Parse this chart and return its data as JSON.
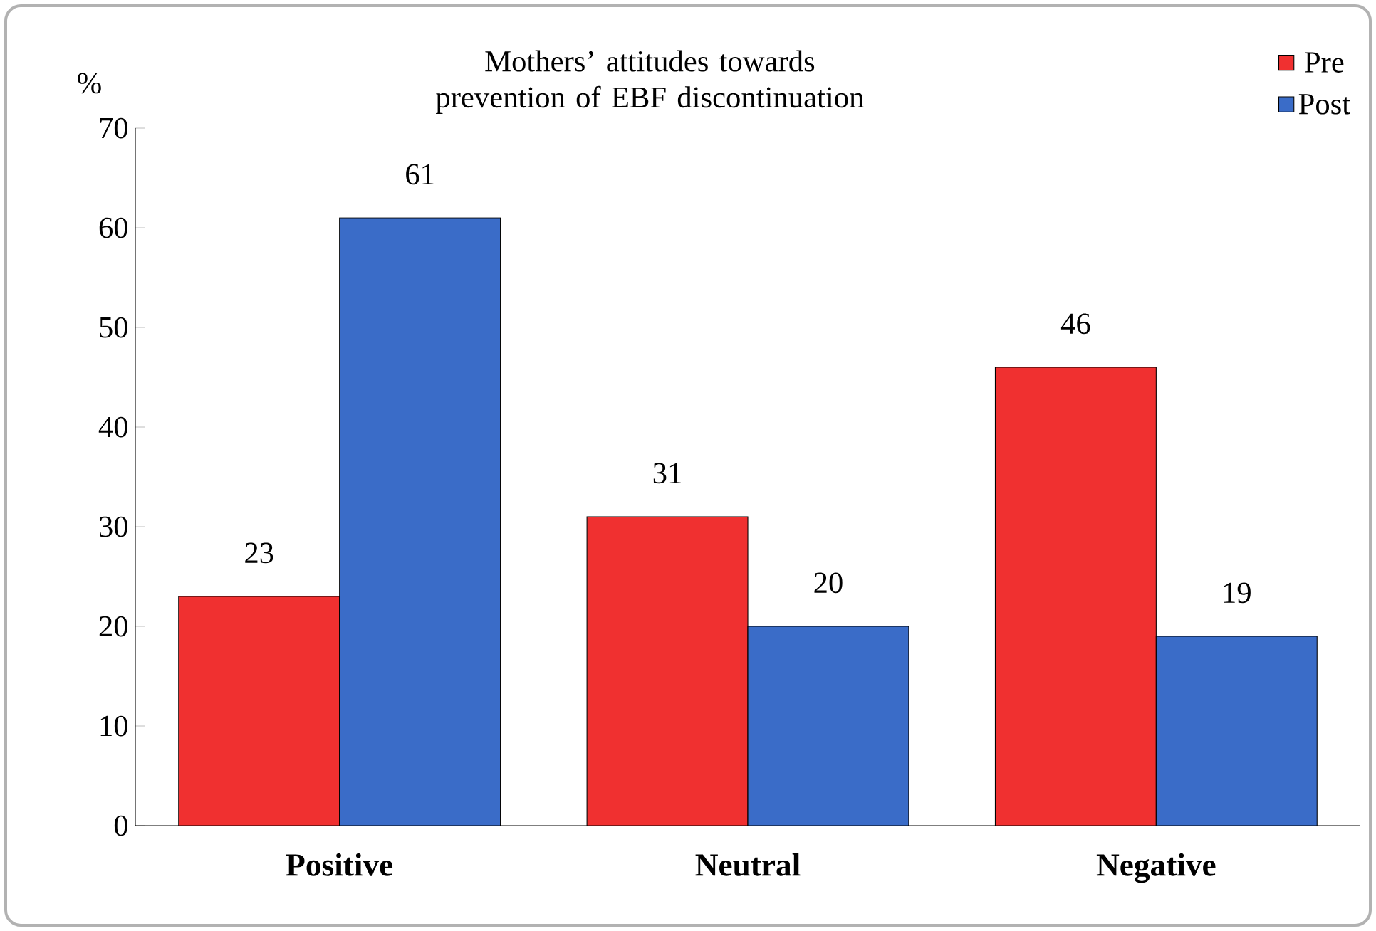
{
  "chart_data": {
    "type": "bar",
    "title": "Mothers’ attitudes towards prevention of EBF discontinuation",
    "ylabel": "%",
    "categories": [
      "Positive",
      "Neutral",
      "Negative"
    ],
    "series": [
      {
        "name": "Pre",
        "color": "#f03030",
        "values": [
          23,
          31,
          46
        ]
      },
      {
        "name": "Post",
        "color": "#3a6cc8",
        "values": [
          61,
          20,
          19
        ]
      }
    ],
    "ylim": [
      0,
      70
    ],
    "yticks": [
      0,
      10,
      20,
      30,
      40,
      50,
      60,
      70
    ],
    "data_labels": true,
    "legend": "top right",
    "grid": false
  }
}
